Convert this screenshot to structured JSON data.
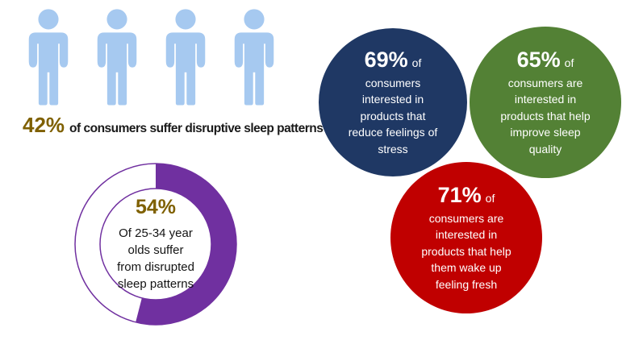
{
  "infographic": {
    "background": "#ffffff",
    "people_stat": {
      "icon_count": 4,
      "icon_color": "#A6C9F0",
      "highlight": "42%",
      "highlight_color": "#7F6000",
      "text": "of consumers suffer disruptive sleep patterns",
      "text_color": "#1a1a1a"
    },
    "donut": {
      "value": "54%",
      "percent": 54,
      "color": "#7030A0",
      "value_color": "#7F6000",
      "lines": [
        "Of 25-34 year",
        "olds suffer",
        "from disrupted",
        "sleep patterns"
      ]
    },
    "bubbles": [
      {
        "id": "stress",
        "color": "#1F3864",
        "percent": "69%",
        "suffix": "of",
        "lines": [
          "consumers",
          "interested in",
          "products that",
          "reduce feelings of",
          "stress"
        ]
      },
      {
        "id": "sleep-quality",
        "color": "#538135",
        "percent": "65%",
        "suffix": "of",
        "lines": [
          "consumers are",
          "interested in",
          "products that help",
          "improve sleep",
          "quality"
        ]
      },
      {
        "id": "wake-fresh",
        "color": "#C00000",
        "percent": "71%",
        "suffix": "of",
        "lines": [
          "consumers are",
          "interested in",
          "products that help",
          "them wake up",
          "feeling fresh"
        ]
      }
    ]
  },
  "chart_data": [
    {
      "type": "pictogram",
      "title": "42% of consumers suffer disruptive sleep patterns",
      "value": 42,
      "unit": "%",
      "icon_count": 4,
      "icon": "person",
      "icon_color": "#A6C9F0"
    },
    {
      "type": "pie",
      "subtype": "donut",
      "title": "54% Of 25-34 year olds suffer from disrupted sleep patterns",
      "labels": [
        "25-34 year olds who suffer disrupted sleep patterns",
        "remainder"
      ],
      "values": [
        54,
        46
      ],
      "colors": [
        "#7030A0",
        "#FFFFFF"
      ],
      "start_angle_deg": 0,
      "direction": "clockwise",
      "center_label": "54%"
    },
    {
      "type": "bubble",
      "items": [
        {
          "label": "consumers interested in products that reduce feelings of stress",
          "value": 69,
          "unit": "%",
          "color": "#1F3864"
        },
        {
          "label": "consumers are interested in products that help improve sleep quality",
          "value": 65,
          "unit": "%",
          "color": "#538135"
        },
        {
          "label": "consumers are interested in products that help them wake up feeling fresh",
          "value": 71,
          "unit": "%",
          "color": "#C00000"
        }
      ]
    }
  ]
}
